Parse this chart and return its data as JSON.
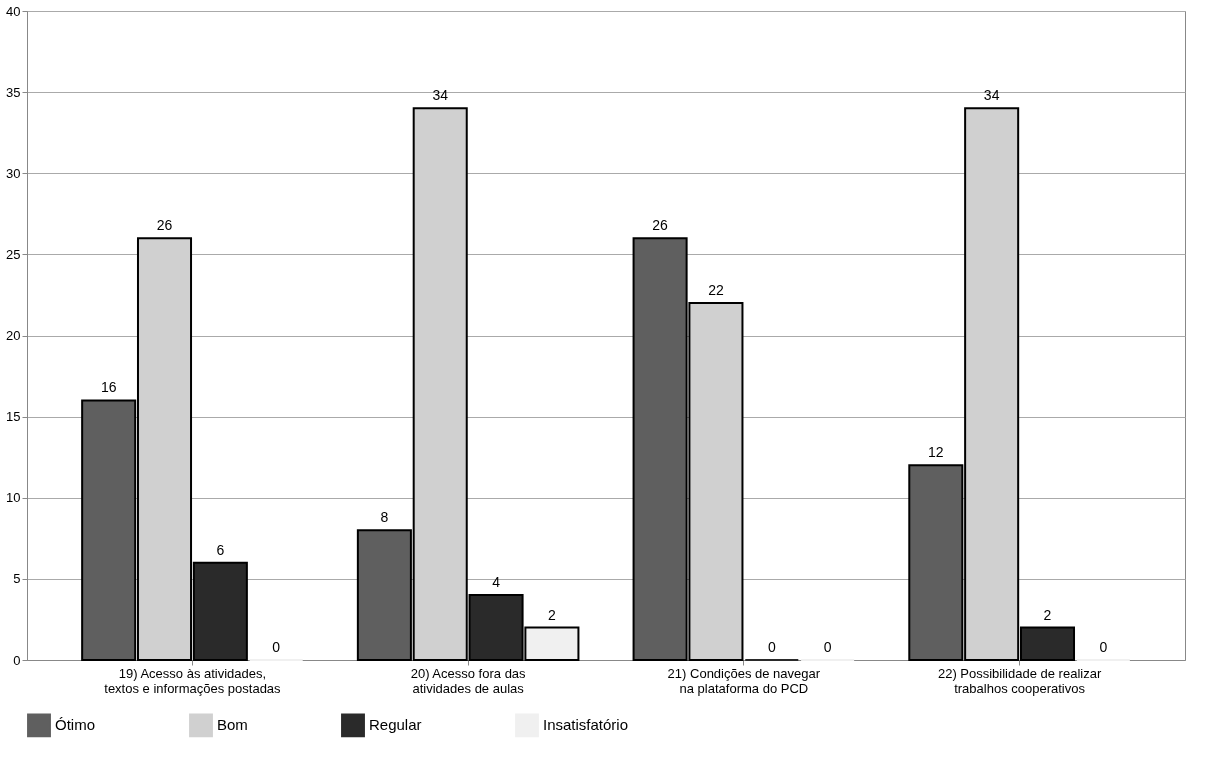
{
  "chart_data": {
    "type": "bar",
    "categories": [
      "19) Acesso às atividades, textos e informações postadas",
      "20) Acesso fora das atividades de aulas",
      "21) Condições de navegar na plataforma do PCD",
      "22) Possibilidade de realizar trabalhos cooperativos"
    ],
    "series": [
      {
        "name": "Ótimo",
        "color": "#5f5f5f",
        "values": [
          16,
          8,
          26,
          12
        ]
      },
      {
        "name": "Bom",
        "color": "#d0d0d0",
        "values": [
          26,
          34,
          22,
          34
        ]
      },
      {
        "name": "Regular",
        "color": "#2a2a2a",
        "values": [
          6,
          4,
          0,
          2
        ]
      },
      {
        "name": "Insatisfatório",
        "color": "#f0f0f0",
        "values": [
          0,
          2,
          0,
          0
        ]
      }
    ],
    "ylim": [
      0,
      40
    ],
    "yticks": [
      0,
      5,
      10,
      15,
      20,
      25,
      30,
      35,
      40
    ],
    "grid": "y",
    "legend": "bottom",
    "data_labels": true
  }
}
